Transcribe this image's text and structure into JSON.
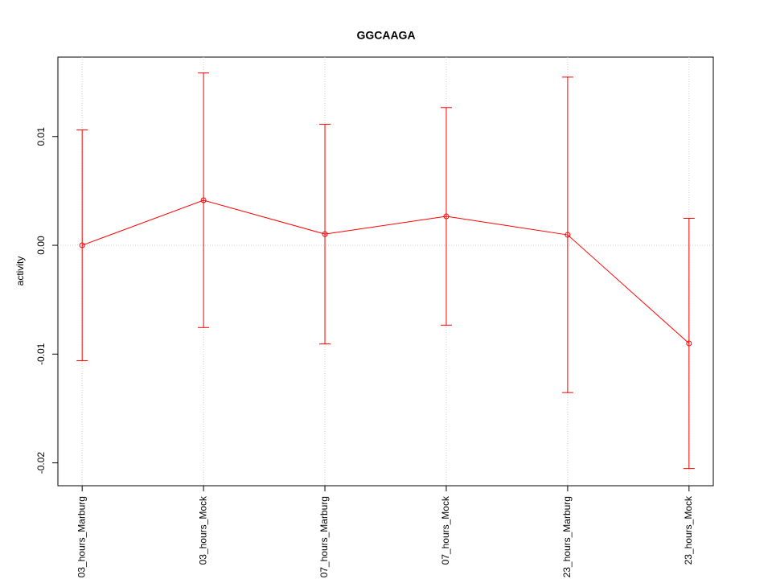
{
  "chart_data": {
    "type": "line",
    "title": "GGCAAGA",
    "y_label": "activity",
    "categories": [
      "03_hours_Marburg",
      "03_hours_Mock",
      "07_hours_Marburg",
      "07_hours_Mock",
      "23_hours_Marburg",
      "23_hours_Mock"
    ],
    "series": [
      {
        "name": "activity",
        "color": "#ff0000",
        "values": [
          0.0,
          0.00414,
          0.00103,
          0.00266,
          0.00096,
          -0.00902
        ],
        "errors": [
          0.0106,
          0.0117,
          0.0101,
          0.01,
          0.0145,
          0.0115
        ]
      }
    ],
    "ylim": [
      -0.0221,
      0.0173
    ],
    "yticks": [
      {
        "value": -0.02,
        "label": "-0.02"
      },
      {
        "value": -0.01,
        "label": "-0.01"
      },
      {
        "value": 0,
        "label": "0.00"
      },
      {
        "value": 0.01,
        "label": "0.01"
      }
    ],
    "reference_line": 0,
    "grid": true
  }
}
